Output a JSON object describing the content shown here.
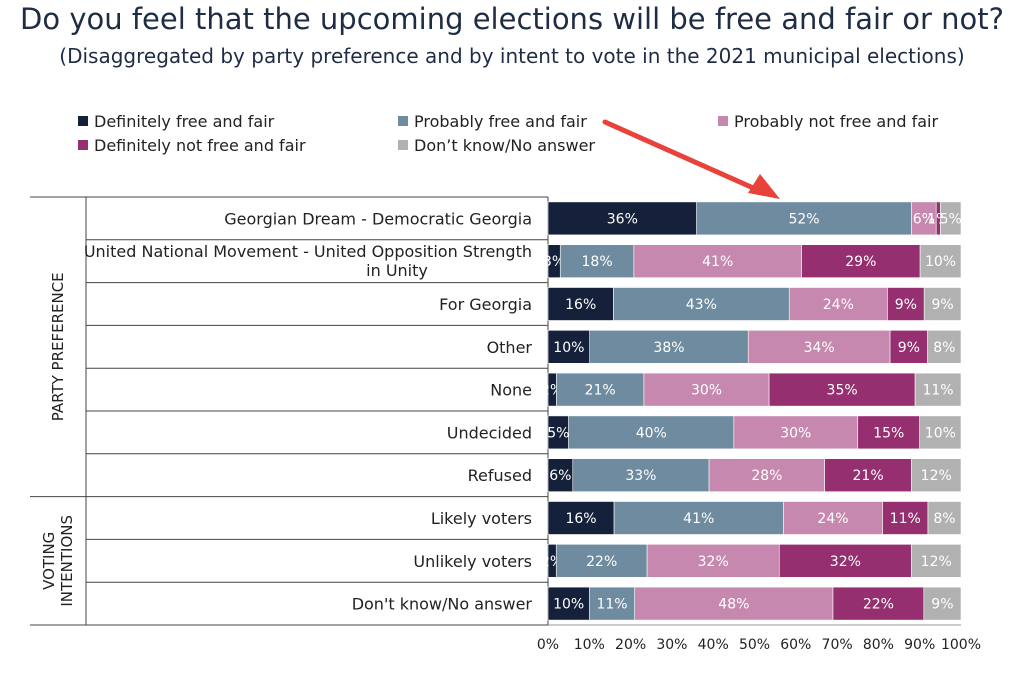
{
  "title": "Do you feel that the upcoming elections will be free and fair or not?",
  "subtitle": "(Disaggregated by party preference and by intent to vote in the 2021 municipal elections)",
  "colors": {
    "definitely_free": "#15213a",
    "probably_free": "#6e8b9f",
    "probably_not": "#c688ae",
    "definitely_not": "#952f6f",
    "dont_know": "#b1b1b1",
    "arrow": "#e8423a"
  },
  "chart_data": {
    "type": "bar",
    "orientation": "horizontal",
    "stacked": true,
    "xlim": [
      0,
      100
    ],
    "x_ticks": [
      "0%",
      "10%",
      "20%",
      "30%",
      "40%",
      "50%",
      "60%",
      "70%",
      "80%",
      "90%",
      "100%"
    ],
    "legend_position": "top",
    "series_names": [
      "Definitely free and fair",
      "Probably free and fair",
      "Probably not free and fair",
      "Definitely not free and fair",
      "Don’t know/No answer"
    ],
    "groups": [
      {
        "label": "PARTY PREFERENCE",
        "rows": [
          0,
          1,
          2,
          3,
          4,
          5,
          6
        ]
      },
      {
        "label_lines": [
          "VOTING",
          "INTENTIONS"
        ],
        "rows": [
          7,
          8,
          9
        ]
      }
    ],
    "rows": [
      {
        "label_lines": [
          "Georgian Dream - Democratic Georgia"
        ],
        "values": [
          36,
          52,
          6,
          1,
          5
        ]
      },
      {
        "label_lines": [
          "United National Movement - United Opposition Strength",
          "in Unity"
        ],
        "values": [
          3,
          18,
          41,
          29,
          10
        ]
      },
      {
        "label_lines": [
          "For Georgia"
        ],
        "values": [
          16,
          43,
          24,
          9,
          9
        ]
      },
      {
        "label_lines": [
          "Other"
        ],
        "values": [
          10,
          38,
          34,
          9,
          8
        ]
      },
      {
        "label_lines": [
          "None"
        ],
        "values": [
          2,
          21,
          30,
          35,
          11
        ]
      },
      {
        "label_lines": [
          "Undecided"
        ],
        "values": [
          5,
          40,
          30,
          15,
          10
        ]
      },
      {
        "label_lines": [
          "Refused"
        ],
        "values": [
          6,
          33,
          28,
          21,
          12
        ]
      },
      {
        "label_lines": [
          "Likely voters"
        ],
        "values": [
          16,
          41,
          24,
          11,
          8
        ]
      },
      {
        "label_lines": [
          "Unlikely voters"
        ],
        "values": [
          2,
          22,
          32,
          32,
          12
        ]
      },
      {
        "label_lines": [
          "Don't know/No answer"
        ],
        "values": [
          10,
          11,
          48,
          22,
          9
        ]
      }
    ]
  }
}
